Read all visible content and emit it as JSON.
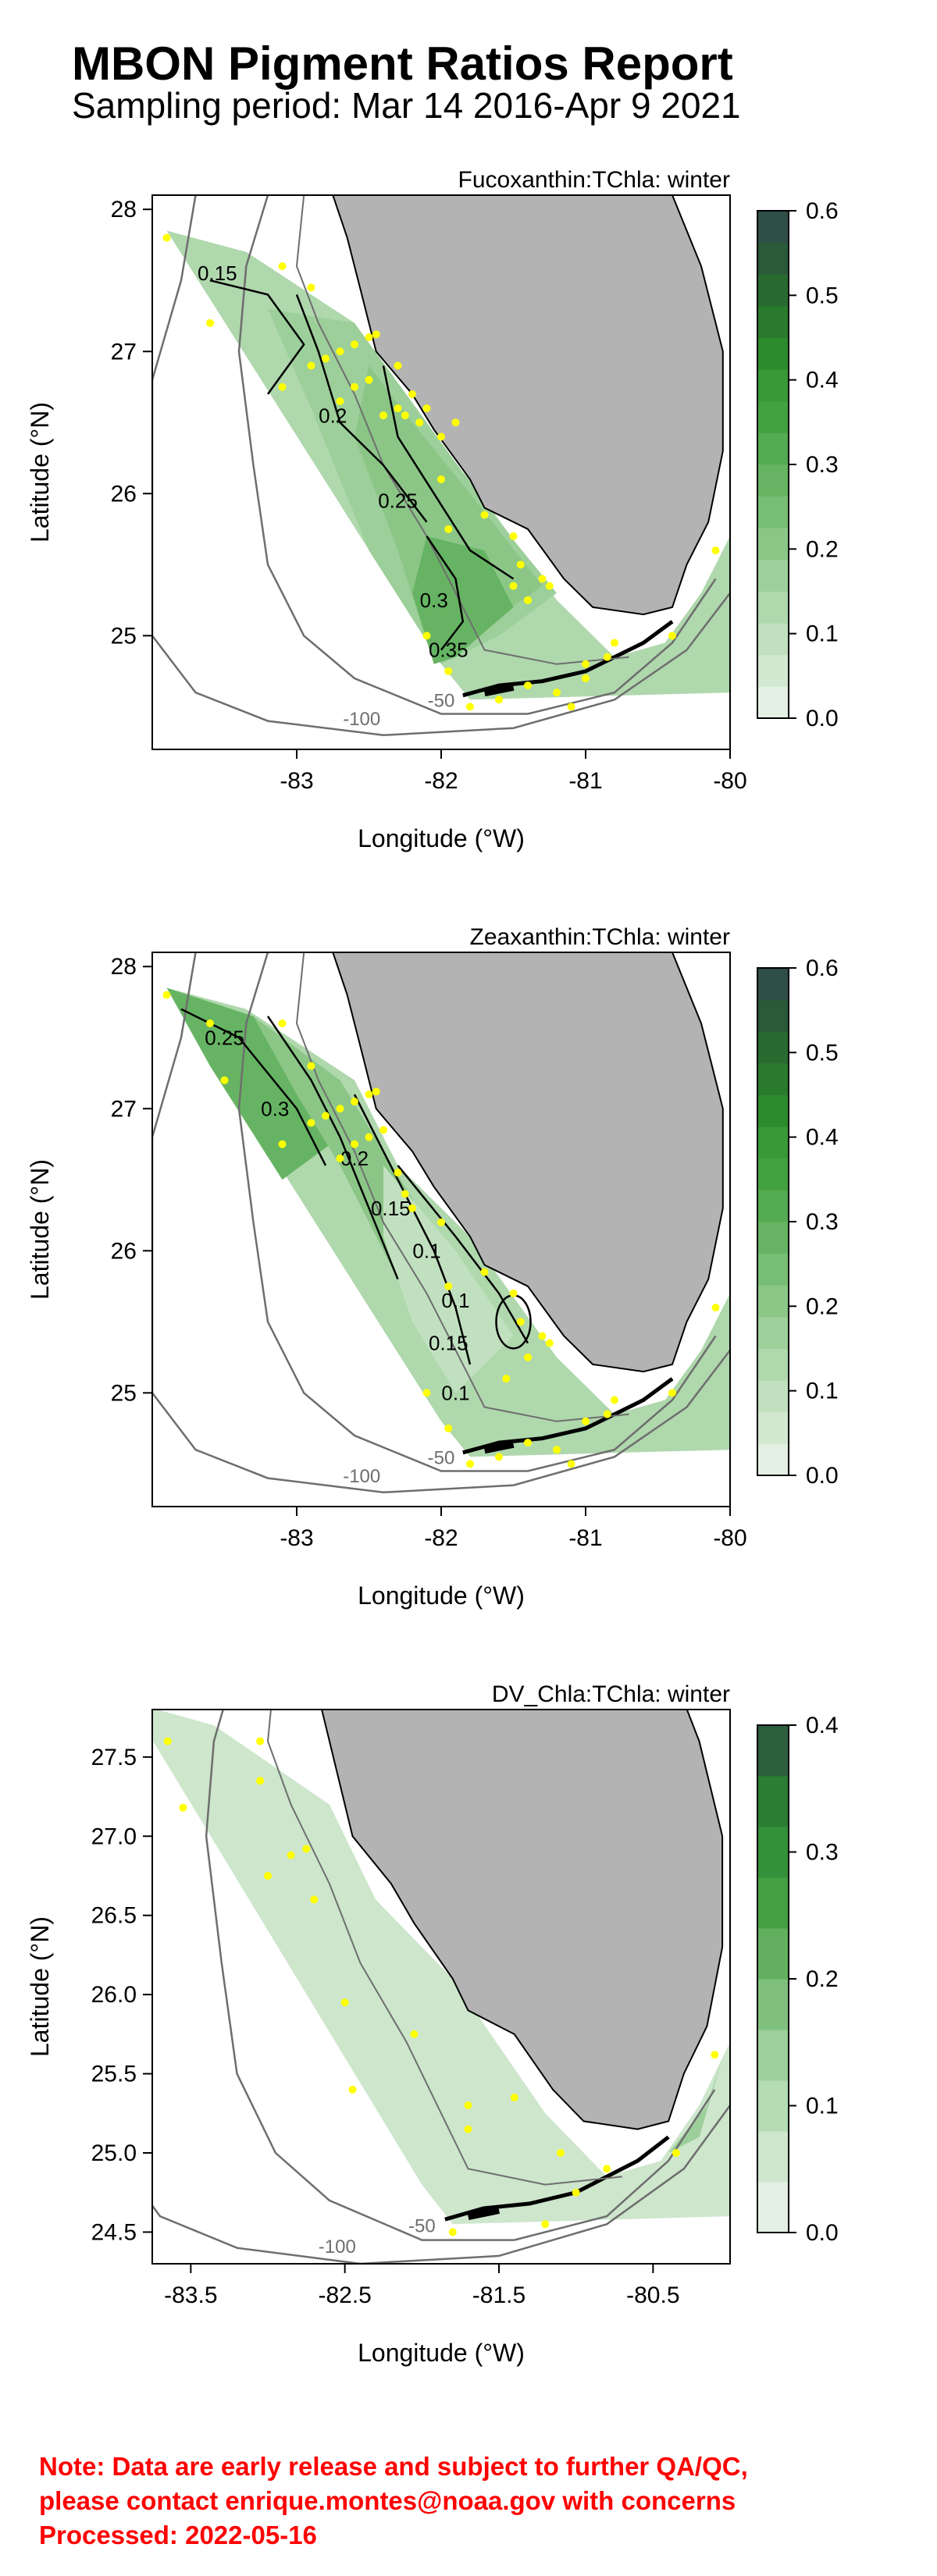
{
  "report": {
    "title": "MBON Pigment Ratios Report",
    "subtitle": "Sampling period: Mar 14 2016-Apr 9 2021"
  },
  "chart_data": [
    {
      "type": "heatmap",
      "title": "Fucoxanthin:TChla: winter",
      "xlabel": "Longitude (°W)",
      "ylabel": "Latitude (°N)",
      "xlim": [
        -84.0,
        -80.0
      ],
      "ylim": [
        24.2,
        28.1
      ],
      "x_ticks": [
        -83,
        -82,
        -81,
        -80
      ],
      "x_tick_labels": [
        "-83",
        "-82",
        "-81",
        "-80"
      ],
      "y_ticks": [
        25,
        26,
        27,
        28
      ],
      "y_tick_labels": [
        "25",
        "26",
        "27",
        "28"
      ],
      "colorbar": {
        "min": 0.0,
        "max": 0.6,
        "tick_values": [
          0.0,
          0.1,
          0.2,
          0.3,
          0.4,
          0.5,
          0.6
        ],
        "tick_labels": [
          "0.0",
          "0.1",
          "0.2",
          "0.3",
          "0.4",
          "0.5",
          "0.6"
        ],
        "level_colors": [
          "#e3f0e3",
          "#d2e8d1",
          "#c1e0bf",
          "#afd8ad",
          "#9dcf9a",
          "#8bc687",
          "#78bd75",
          "#66b463",
          "#54ab51",
          "#43a240",
          "#379a36",
          "#2c8b2c",
          "#297a2d",
          "#286a30",
          "#2a5a38",
          "#2f4e47"
        ]
      },
      "contour_labels": [
        "0.15",
        "0.2",
        "0.25",
        "0.3",
        "0.35"
      ],
      "isobath_labels": [
        "-100",
        "-50"
      ],
      "stations": [
        [
          -83.9,
          27.8
        ],
        [
          -83.6,
          27.2
        ],
        [
          -83.1,
          27.6
        ],
        [
          -82.9,
          27.45
        ],
        [
          -83.1,
          26.75
        ],
        [
          -82.9,
          26.9
        ],
        [
          -82.8,
          26.95
        ],
        [
          -82.7,
          27.0
        ],
        [
          -82.6,
          27.05
        ],
        [
          -82.5,
          27.1
        ],
        [
          -82.45,
          27.12
        ],
        [
          -82.3,
          26.9
        ],
        [
          -82.2,
          26.7
        ],
        [
          -82.1,
          26.6
        ],
        [
          -82.3,
          26.6
        ],
        [
          -82.4,
          26.55
        ],
        [
          -82.7,
          26.65
        ],
        [
          -82.6,
          26.75
        ],
        [
          -82.5,
          26.8
        ],
        [
          -82.25,
          26.55
        ],
        [
          -82.15,
          26.5
        ],
        [
          -82.0,
          26.4
        ],
        [
          -81.9,
          26.5
        ],
        [
          -82.0,
          26.1
        ],
        [
          -81.95,
          25.75
        ],
        [
          -81.7,
          25.85
        ],
        [
          -81.5,
          25.7
        ],
        [
          -81.45,
          25.5
        ],
        [
          -81.3,
          25.4
        ],
        [
          -81.25,
          25.35
        ],
        [
          -81.4,
          25.25
        ],
        [
          -81.5,
          25.35
        ],
        [
          -82.1,
          25.0
        ],
        [
          -81.95,
          24.75
        ],
        [
          -81.8,
          24.5
        ],
        [
          -81.6,
          24.55
        ],
        [
          -81.4,
          24.65
        ],
        [
          -81.2,
          24.6
        ],
        [
          -81.0,
          24.8
        ],
        [
          -80.85,
          24.85
        ],
        [
          -80.8,
          24.95
        ],
        [
          -80.4,
          25.0
        ],
        [
          -80.1,
          25.6
        ],
        [
          -81.0,
          24.7
        ],
        [
          -81.1,
          24.5
        ]
      ]
    },
    {
      "type": "heatmap",
      "title": "Zeaxanthin:TChla: winter",
      "xlabel": "Longitude (°W)",
      "ylabel": "Latitude (°N)",
      "xlim": [
        -84.0,
        -80.0
      ],
      "ylim": [
        24.2,
        28.1
      ],
      "x_ticks": [
        -83,
        -82,
        -81,
        -80
      ],
      "x_tick_labels": [
        "-83",
        "-82",
        "-81",
        "-80"
      ],
      "y_ticks": [
        25,
        26,
        27,
        28
      ],
      "y_tick_labels": [
        "25",
        "26",
        "27",
        "28"
      ],
      "colorbar": {
        "min": 0.0,
        "max": 0.6,
        "tick_values": [
          0.0,
          0.1,
          0.2,
          0.3,
          0.4,
          0.5,
          0.6
        ],
        "tick_labels": [
          "0.0",
          "0.1",
          "0.2",
          "0.3",
          "0.4",
          "0.5",
          "0.6"
        ],
        "level_colors": [
          "#e3f0e3",
          "#d2e8d1",
          "#c1e0bf",
          "#afd8ad",
          "#9dcf9a",
          "#8bc687",
          "#78bd75",
          "#66b463",
          "#54ab51",
          "#43a240",
          "#379a36",
          "#2c8b2c",
          "#297a2d",
          "#286a30",
          "#2a5a38",
          "#2f4e47"
        ]
      },
      "contour_labels": [
        "0.25",
        "0.3",
        "0.2",
        "0.15",
        "0.1",
        "0.1",
        "0.15",
        "0.1"
      ],
      "isobath_labels": [
        "-100",
        "-50"
      ],
      "stations": [
        [
          -83.9,
          27.8
        ],
        [
          -83.6,
          27.6
        ],
        [
          -83.1,
          27.6
        ],
        [
          -82.9,
          27.3
        ],
        [
          -83.5,
          27.2
        ],
        [
          -83.1,
          26.75
        ],
        [
          -82.9,
          26.9
        ],
        [
          -82.8,
          26.95
        ],
        [
          -82.7,
          27.0
        ],
        [
          -82.6,
          27.05
        ],
        [
          -82.5,
          27.1
        ],
        [
          -82.45,
          27.12
        ],
        [
          -82.4,
          26.85
        ],
        [
          -82.3,
          26.55
        ],
        [
          -82.25,
          26.4
        ],
        [
          -82.2,
          26.3
        ],
        [
          -82.7,
          26.65
        ],
        [
          -82.6,
          26.75
        ],
        [
          -82.5,
          26.8
        ],
        [
          -82.0,
          26.2
        ],
        [
          -81.95,
          25.75
        ],
        [
          -81.7,
          25.85
        ],
        [
          -81.5,
          25.7
        ],
        [
          -81.45,
          25.5
        ],
        [
          -81.3,
          25.4
        ],
        [
          -81.25,
          25.35
        ],
        [
          -81.4,
          25.25
        ],
        [
          -81.55,
          25.1
        ],
        [
          -82.1,
          25.0
        ],
        [
          -81.95,
          24.75
        ],
        [
          -81.8,
          24.5
        ],
        [
          -81.6,
          24.55
        ],
        [
          -81.4,
          24.65
        ],
        [
          -81.2,
          24.6
        ],
        [
          -81.0,
          24.8
        ],
        [
          -80.85,
          24.85
        ],
        [
          -80.8,
          24.95
        ],
        [
          -80.4,
          25.0
        ],
        [
          -80.1,
          25.6
        ],
        [
          -81.1,
          24.5
        ]
      ]
    },
    {
      "type": "heatmap",
      "title": "DV_Chla:TChla: winter",
      "xlabel": "Longitude (°W)",
      "ylabel": "Latitude (°N)",
      "xlim": [
        -83.75,
        -80.0
      ],
      "ylim": [
        24.3,
        27.8
      ],
      "x_ticks": [
        -83.5,
        -82.5,
        -81.5,
        -80.5
      ],
      "x_tick_labels": [
        "-83.5",
        "-82.5",
        "-81.5",
        "-80.5"
      ],
      "y_ticks": [
        24.5,
        25.0,
        25.5,
        26.0,
        26.5,
        27.0,
        27.5
      ],
      "y_tick_labels": [
        "24.5",
        "25.0",
        "25.5",
        "26.0",
        "26.5",
        "27.0",
        "27.5"
      ],
      "colorbar": {
        "min": 0.0,
        "max": 0.4,
        "tick_values": [
          0.0,
          0.1,
          0.2,
          0.3,
          0.4
        ],
        "tick_labels": [
          "0.0",
          "0.1",
          "0.2",
          "0.3",
          "0.4"
        ],
        "level_colors": [
          "#e3f0e3",
          "#cde6cc",
          "#b5dcb3",
          "#9ccf99",
          "#80c07e",
          "#62b05f",
          "#45a043",
          "#33913a",
          "#2b7d33",
          "#2d5e3e"
        ]
      },
      "contour_labels": [],
      "isobath_labels": [
        "-100",
        "-50"
      ],
      "stations": [
        [
          -83.65,
          27.6
        ],
        [
          -83.55,
          27.18
        ],
        [
          -83.05,
          27.6
        ],
        [
          -83.05,
          27.35
        ],
        [
          -83.0,
          26.75
        ],
        [
          -82.85,
          26.88
        ],
        [
          -82.75,
          26.92
        ],
        [
          -82.7,
          26.6
        ],
        [
          -82.5,
          25.95
        ],
        [
          -82.45,
          25.4
        ],
        [
          -82.05,
          25.75
        ],
        [
          -81.7,
          25.3
        ],
        [
          -81.7,
          25.15
        ],
        [
          -81.4,
          25.35
        ],
        [
          -81.1,
          25.0
        ],
        [
          -81.0,
          24.75
        ],
        [
          -80.8,
          24.9
        ],
        [
          -80.35,
          25.0
        ],
        [
          -80.1,
          25.62
        ],
        [
          -81.2,
          24.55
        ],
        [
          -81.8,
          24.5
        ]
      ]
    }
  ],
  "note": {
    "line1": "Note: Data are early release and subject to further QA/QC,",
    "line2": "please contact enrique.montes@noaa.gov with concerns",
    "line3": "Processed:  2022-05-16"
  }
}
